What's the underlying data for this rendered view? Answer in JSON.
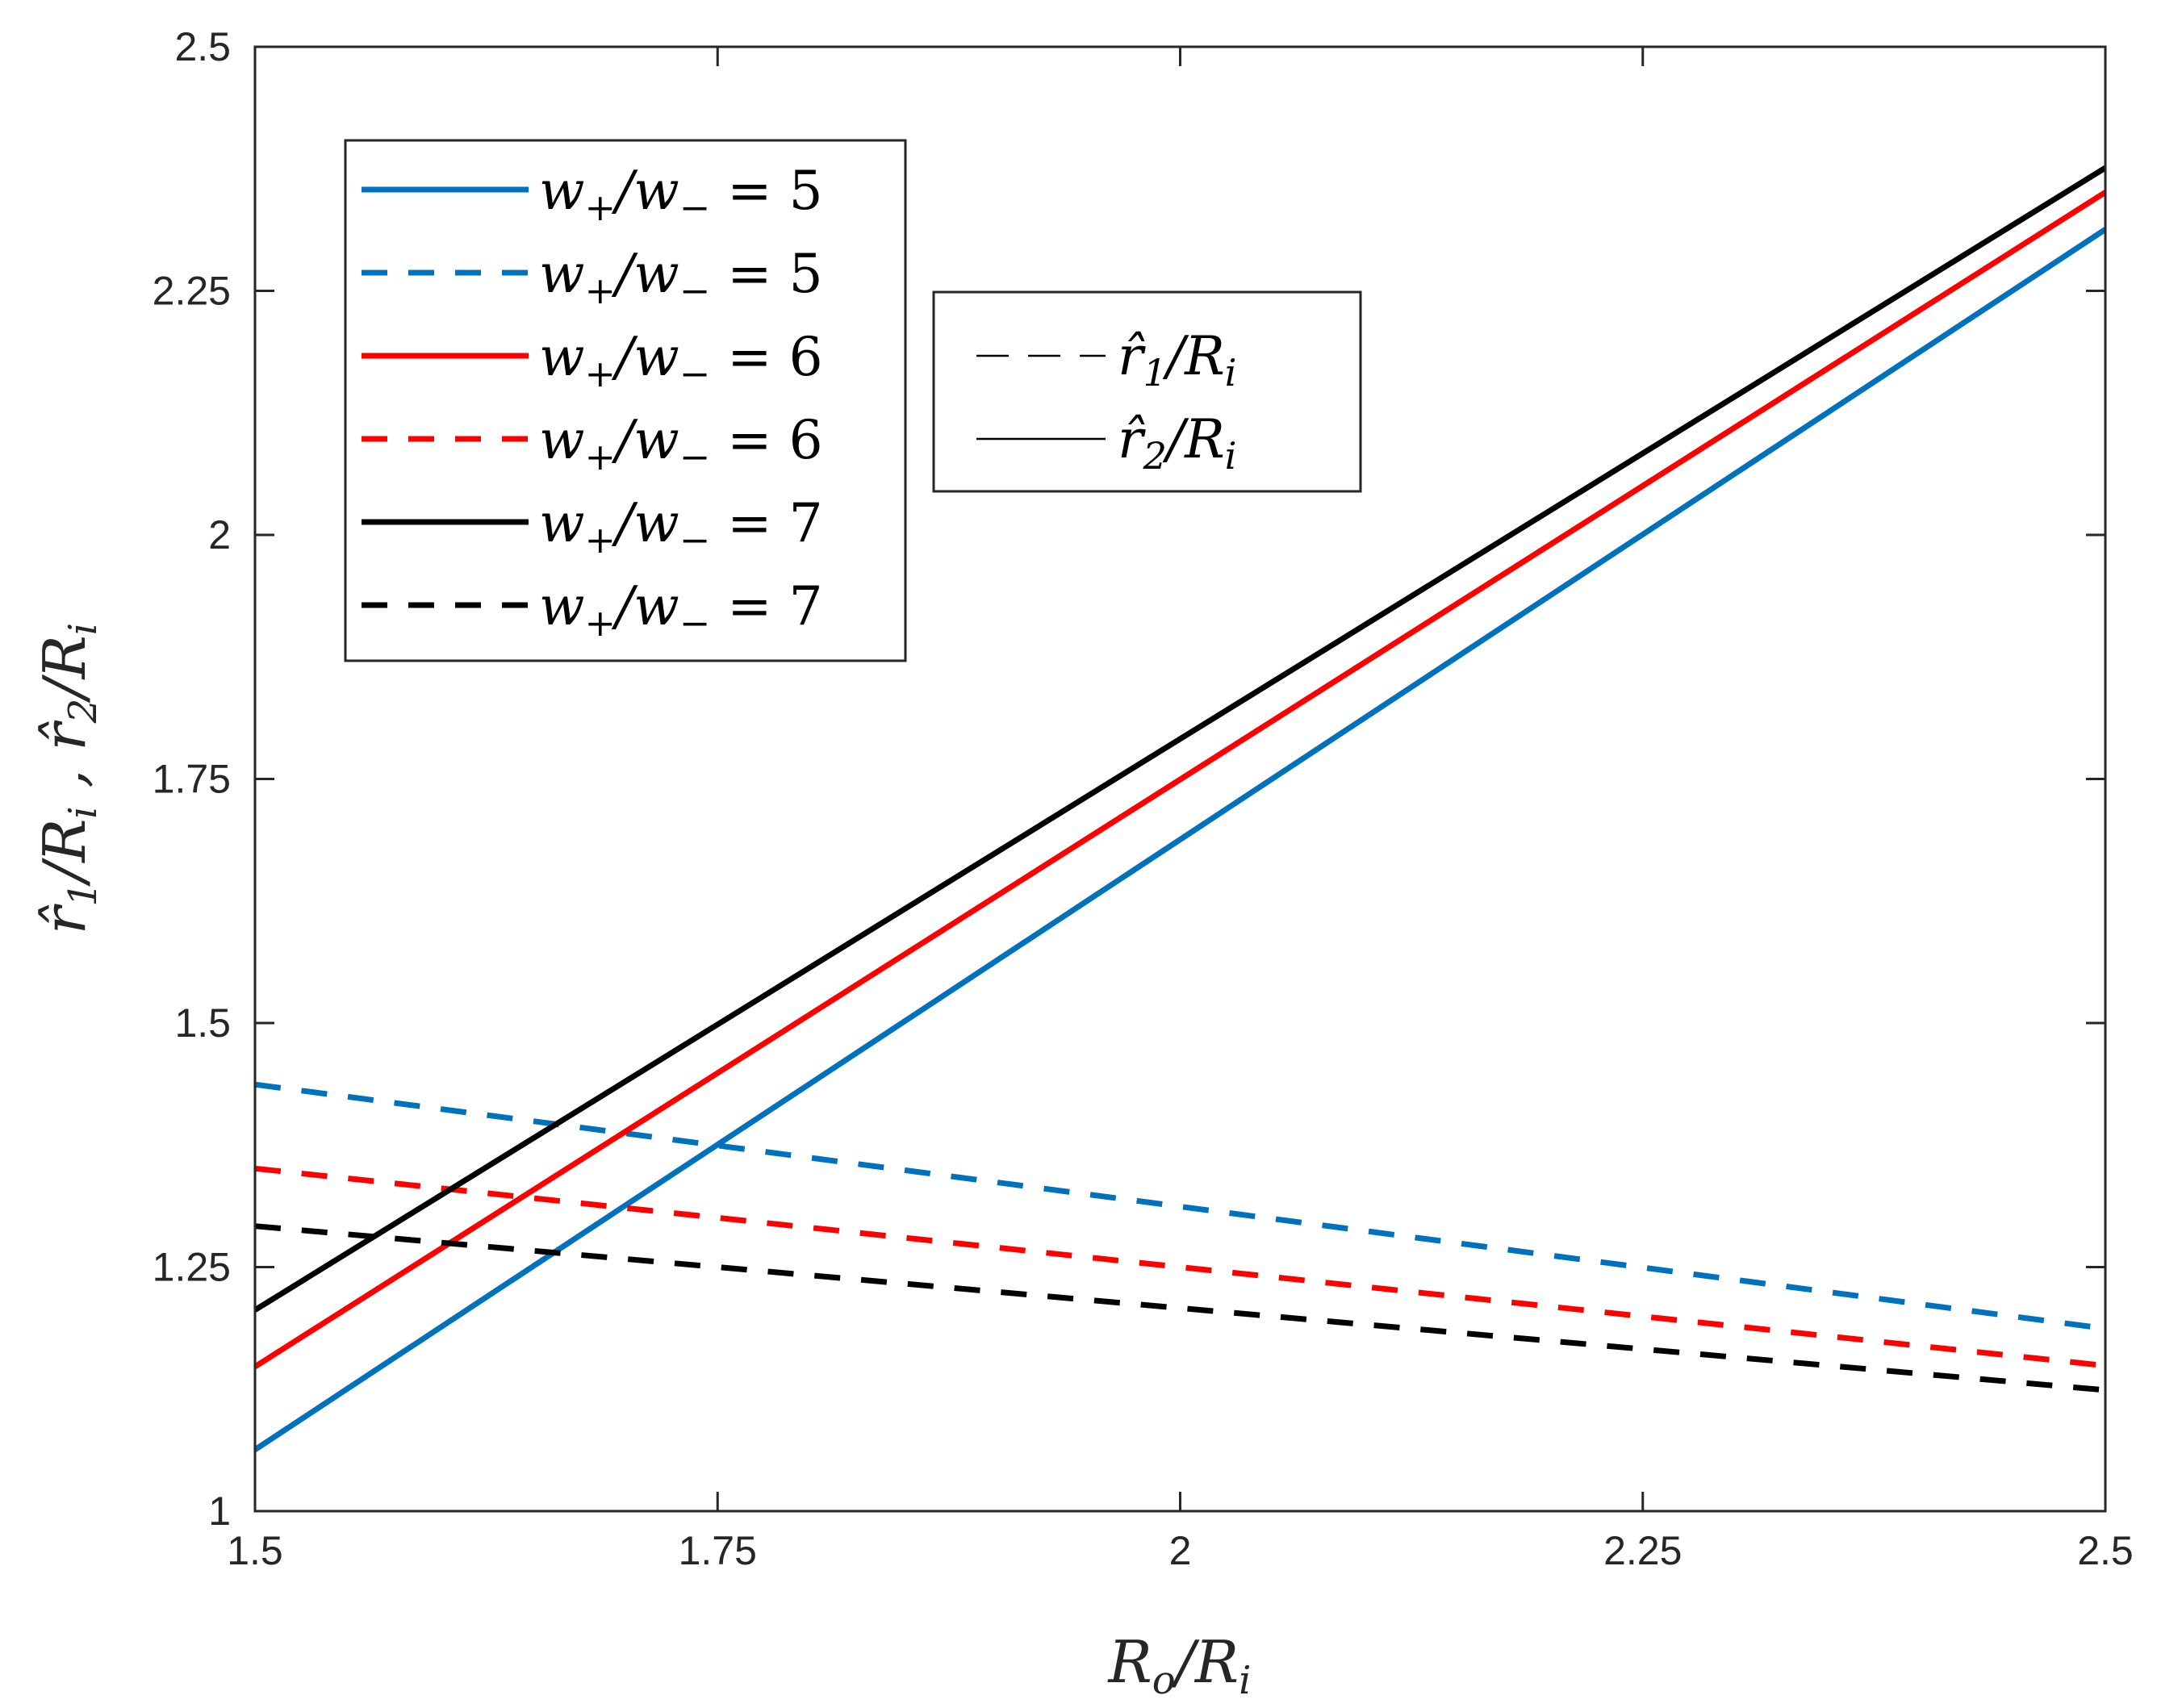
{
  "chart_data": {
    "type": "line",
    "xlabel": "R_o/R_i",
    "ylabel": "r̂_1/R_i , r̂_2/R_i",
    "xlim": [
      1.5,
      2.5
    ],
    "ylim": [
      1.0,
      2.5
    ],
    "xticks": [
      1.5,
      1.75,
      2.0,
      2.25,
      2.5
    ],
    "xtick_labels": [
      "1.5",
      "1.75",
      "2",
      "2.25",
      "2.5"
    ],
    "yticks": [
      1.0,
      1.25,
      1.5,
      1.75,
      2.0,
      2.25,
      2.5
    ],
    "ytick_labels": [
      "1",
      "1.25",
      "1.5",
      "1.75",
      "2",
      "2.25",
      "2.5"
    ],
    "grid": false,
    "x": [
      1.5,
      2.5
    ],
    "series": [
      {
        "name": "w+/w− = 5",
        "ratio": "5",
        "style": "solid",
        "color": "#0072BD",
        "values": [
          1.063,
          2.313
        ]
      },
      {
        "name": "w+/w− = 5",
        "ratio": "5",
        "style": "dashed",
        "color": "#0072BD",
        "values": [
          1.437,
          1.187
        ]
      },
      {
        "name": "w+/w− = 6",
        "ratio": "6",
        "style": "solid",
        "color": "#FF0000",
        "values": [
          1.148,
          2.351
        ]
      },
      {
        "name": "w+/w− = 6",
        "ratio": "6",
        "style": "dashed",
        "color": "#FF0000",
        "values": [
          1.351,
          1.149
        ]
      },
      {
        "name": "w+/w− = 7",
        "ratio": "7",
        "style": "solid",
        "color": "#000000",
        "values": [
          1.206,
          2.376
        ]
      },
      {
        "name": "w+/w− = 7",
        "ratio": "7",
        "style": "dashed",
        "color": "#000000",
        "values": [
          1.292,
          1.124
        ]
      }
    ],
    "legend_primary_placement": "top-left",
    "legend_secondary_placement": "upper-center",
    "legend_secondary": [
      {
        "label": "r̂_1/R_i",
        "style": "dashed"
      },
      {
        "label": "r̂_2/R_i",
        "style": "solid"
      }
    ]
  }
}
